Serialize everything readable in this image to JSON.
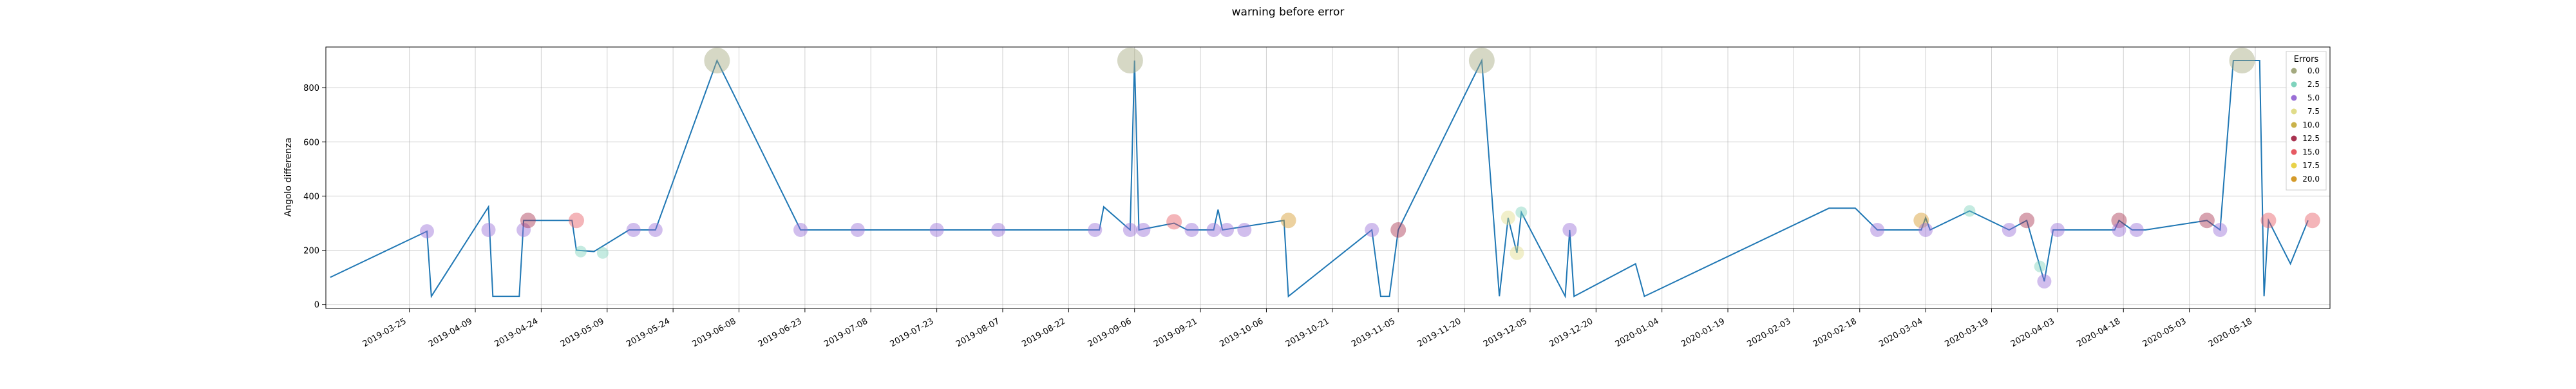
{
  "chart_data": {
    "type": "scatter",
    "title": "warning before error",
    "xlabel": "",
    "ylabel": "Angolo differenza",
    "x_type": "date",
    "xlim": [
      "2019-03-06",
      "2020-06-04"
    ],
    "ylim": [
      -15,
      950
    ],
    "yticks": [
      0,
      200,
      400,
      600,
      800
    ],
    "xticks": [
      "2019-03-25",
      "2019-04-09",
      "2019-04-24",
      "2019-05-09",
      "2019-05-24",
      "2019-06-08",
      "2019-06-23",
      "2019-07-08",
      "2019-07-23",
      "2019-08-07",
      "2019-08-22",
      "2019-09-06",
      "2019-09-21",
      "2019-10-06",
      "2019-10-21",
      "2019-11-05",
      "2019-11-20",
      "2019-12-05",
      "2019-12-20",
      "2020-01-04",
      "2020-01-19",
      "2020-02-03",
      "2020-02-18",
      "2020-03-04",
      "2020-03-19",
      "2020-04-03",
      "2020-04-18",
      "2020-05-03",
      "2020-05-18"
    ],
    "grid": true,
    "legend": {
      "title": "Errors",
      "position": "top-right",
      "entries": [
        {
          "label": "0.0",
          "color": "#a3a97f"
        },
        {
          "label": "2.5",
          "color": "#7fd3bd"
        },
        {
          "label": "5.0",
          "color": "#9a6fd6"
        },
        {
          "label": "7.5",
          "color": "#e0dc8a"
        },
        {
          "label": "10.0",
          "color": "#c9b24a"
        },
        {
          "label": "12.5",
          "color": "#a83250"
        },
        {
          "label": "15.0",
          "color": "#e65a63"
        },
        {
          "label": "17.5",
          "color": "#e8d24a"
        },
        {
          "label": "20.0",
          "color": "#d49a2a"
        }
      ]
    },
    "line": {
      "color": "#1f77b4",
      "points": [
        [
          "2019-03-07",
          100
        ],
        [
          "2019-03-29",
          270
        ],
        [
          "2019-03-30",
          30
        ],
        [
          "2019-04-12",
          360
        ],
        [
          "2019-04-13",
          30
        ],
        [
          "2019-04-19",
          30
        ],
        [
          "2019-04-20",
          310
        ],
        [
          "2019-05-01",
          310
        ],
        [
          "2019-05-02",
          200
        ],
        [
          "2019-05-06",
          195
        ],
        [
          "2019-05-14",
          275
        ],
        [
          "2019-05-20",
          275
        ],
        [
          "2019-06-03",
          900
        ],
        [
          "2019-06-22",
          275
        ],
        [
          "2019-08-29",
          275
        ],
        [
          "2019-08-30",
          360
        ],
        [
          "2019-09-05",
          275
        ],
        [
          "2019-09-06",
          900
        ],
        [
          "2019-09-07",
          275
        ],
        [
          "2019-09-15",
          300
        ],
        [
          "2019-09-18",
          275
        ],
        [
          "2019-09-24",
          275
        ],
        [
          "2019-09-25",
          350
        ],
        [
          "2019-09-26",
          275
        ],
        [
          "2019-10-10",
          310
        ],
        [
          "2019-10-11",
          30
        ],
        [
          "2019-10-30",
          275
        ],
        [
          "2019-11-01",
          30
        ],
        [
          "2019-11-03",
          30
        ],
        [
          "2019-11-05",
          275
        ],
        [
          "2019-11-24",
          900
        ],
        [
          "2019-11-28",
          30
        ],
        [
          "2019-11-30",
          320
        ],
        [
          "2019-12-02",
          190
        ],
        [
          "2019-12-03",
          340
        ],
        [
          "2019-12-13",
          30
        ],
        [
          "2019-12-14",
          275
        ],
        [
          "2019-12-15",
          30
        ],
        [
          "2019-12-29",
          150
        ],
        [
          "2019-12-31",
          30
        ],
        [
          "2020-02-11",
          355
        ],
        [
          "2020-02-17",
          355
        ],
        [
          "2020-02-22",
          275
        ],
        [
          "2020-03-03",
          275
        ],
        [
          "2020-03-04",
          320
        ],
        [
          "2020-03-05",
          275
        ],
        [
          "2020-03-14",
          345
        ],
        [
          "2020-03-23",
          275
        ],
        [
          "2020-03-27",
          310
        ],
        [
          "2020-03-30",
          140
        ],
        [
          "2020-03-31",
          85
        ],
        [
          "2020-04-02",
          275
        ],
        [
          "2020-04-16",
          275
        ],
        [
          "2020-04-17",
          310
        ],
        [
          "2020-04-20",
          275
        ],
        [
          "2020-04-23",
          275
        ],
        [
          "2020-05-07",
          310
        ],
        [
          "2020-05-10",
          275
        ],
        [
          "2020-05-13",
          900
        ],
        [
          "2020-05-19",
          900
        ],
        [
          "2020-05-20",
          30
        ],
        [
          "2020-05-21",
          310
        ],
        [
          "2020-05-26",
          150
        ],
        [
          "2020-05-30",
          310
        ]
      ]
    },
    "markers": [
      {
        "x": "2019-03-29",
        "y": 270,
        "errors": 5.0
      },
      {
        "x": "2019-04-12",
        "y": 275,
        "errors": 5.0
      },
      {
        "x": "2019-04-20",
        "y": 275,
        "errors": 5.0
      },
      {
        "x": "2019-04-21",
        "y": 310,
        "errors": 12.5
      },
      {
        "x": "2019-05-02",
        "y": 310,
        "errors": 15.0
      },
      {
        "x": "2019-05-03",
        "y": 195,
        "errors": 2.5
      },
      {
        "x": "2019-05-08",
        "y": 190,
        "errors": 2.5
      },
      {
        "x": "2019-05-15",
        "y": 275,
        "errors": 5.0
      },
      {
        "x": "2019-05-20",
        "y": 275,
        "errors": 5.0
      },
      {
        "x": "2019-06-03",
        "y": 900,
        "errors": 0.0
      },
      {
        "x": "2019-06-22",
        "y": 275,
        "errors": 5.0
      },
      {
        "x": "2019-07-05",
        "y": 275,
        "errors": 5.0
      },
      {
        "x": "2019-07-23",
        "y": 275,
        "errors": 5.0
      },
      {
        "x": "2019-08-06",
        "y": 275,
        "errors": 5.0
      },
      {
        "x": "2019-08-28",
        "y": 275,
        "errors": 5.0
      },
      {
        "x": "2019-09-05",
        "y": 275,
        "errors": 5.0
      },
      {
        "x": "2019-09-05",
        "y": 900,
        "errors": 0.0
      },
      {
        "x": "2019-09-08",
        "y": 275,
        "errors": 5.0
      },
      {
        "x": "2019-09-15",
        "y": 305,
        "errors": 15.0
      },
      {
        "x": "2019-09-19",
        "y": 275,
        "errors": 5.0
      },
      {
        "x": "2019-09-24",
        "y": 275,
        "errors": 5.0
      },
      {
        "x": "2019-09-27",
        "y": 275,
        "errors": 5.0
      },
      {
        "x": "2019-10-01",
        "y": 275,
        "errors": 5.0
      },
      {
        "x": "2019-10-11",
        "y": 310,
        "errors": 20.0
      },
      {
        "x": "2019-10-30",
        "y": 275,
        "errors": 5.0
      },
      {
        "x": "2019-11-05",
        "y": 275,
        "errors": 12.5
      },
      {
        "x": "2019-11-24",
        "y": 900,
        "errors": 0.0
      },
      {
        "x": "2019-11-30",
        "y": 320,
        "errors": 7.5
      },
      {
        "x": "2019-12-02",
        "y": 190,
        "errors": 7.5
      },
      {
        "x": "2019-12-03",
        "y": 340,
        "errors": 2.5
      },
      {
        "x": "2019-12-14",
        "y": 275,
        "errors": 5.0
      },
      {
        "x": "2020-02-22",
        "y": 275,
        "errors": 5.0
      },
      {
        "x": "2020-03-03",
        "y": 310,
        "errors": 20.0
      },
      {
        "x": "2020-03-04",
        "y": 275,
        "errors": 5.0
      },
      {
        "x": "2020-03-14",
        "y": 345,
        "errors": 2.5
      },
      {
        "x": "2020-03-23",
        "y": 275,
        "errors": 5.0
      },
      {
        "x": "2020-03-27",
        "y": 310,
        "errors": 12.5
      },
      {
        "x": "2020-03-30",
        "y": 140,
        "errors": 2.5
      },
      {
        "x": "2020-03-31",
        "y": 85,
        "errors": 5.0
      },
      {
        "x": "2020-04-03",
        "y": 275,
        "errors": 5.0
      },
      {
        "x": "2020-04-17",
        "y": 310,
        "errors": 12.5
      },
      {
        "x": "2020-04-17",
        "y": 275,
        "errors": 5.0
      },
      {
        "x": "2020-04-21",
        "y": 275,
        "errors": 5.0
      },
      {
        "x": "2020-05-07",
        "y": 310,
        "errors": 12.5
      },
      {
        "x": "2020-05-10",
        "y": 275,
        "errors": 5.0
      },
      {
        "x": "2020-05-15",
        "y": 900,
        "errors": 0.0
      },
      {
        "x": "2020-05-21",
        "y": 310,
        "errors": 15.0
      },
      {
        "x": "2020-05-31",
        "y": 310,
        "errors": 15.0
      }
    ]
  }
}
